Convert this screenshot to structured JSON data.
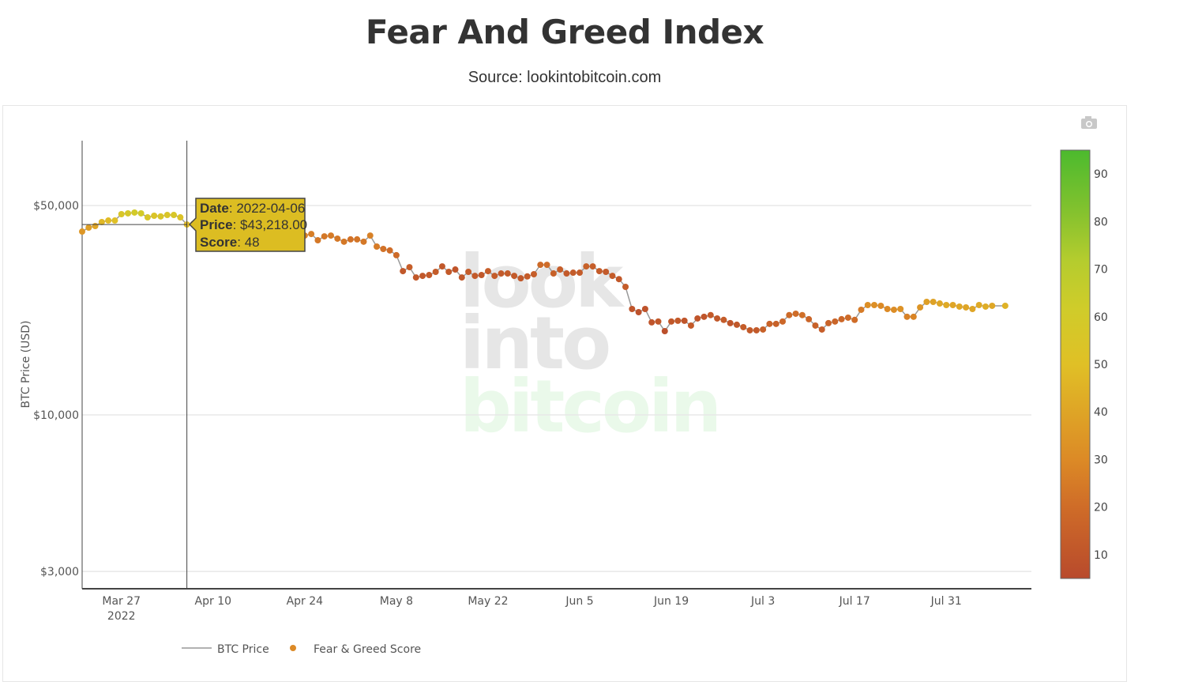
{
  "header": {
    "title": "Fear And Greed Index",
    "subtitle": "Source: lookintobitcoin.com"
  },
  "toolbar": {
    "camera_icon": "camera-icon"
  },
  "watermark": {
    "line1": "look",
    "line2": "into",
    "line3": "bitcoin"
  },
  "tooltip": {
    "date_label": "Date",
    "date_value": "2022-04-06",
    "price_label": "Price",
    "price_value": "$43,218.00",
    "score_label": "Score",
    "score_value": "48"
  },
  "chart_data": {
    "type": "scatter",
    "title": "Fear And Greed Index",
    "subtitle": "Source: lookintobitcoin.com",
    "ylabel": "BTC Price (USD)",
    "yscale": "log",
    "ylim": [
      2627,
      82340
    ],
    "xlim": [
      "2022-03-21",
      "2022-08-13"
    ],
    "grid": true,
    "legend_position": "bottom",
    "x_ticks": [
      {
        "date": "2022-03-27",
        "label": "Mar 27",
        "sub": "2022"
      },
      {
        "date": "2022-04-10",
        "label": "Apr 10"
      },
      {
        "date": "2022-04-24",
        "label": "Apr 24"
      },
      {
        "date": "2022-05-08",
        "label": "May 8"
      },
      {
        "date": "2022-05-22",
        "label": "May 22"
      },
      {
        "date": "2022-06-05",
        "label": "Jun 5"
      },
      {
        "date": "2022-06-19",
        "label": "Jun 19"
      },
      {
        "date": "2022-07-03",
        "label": "Jul 3"
      },
      {
        "date": "2022-07-17",
        "label": "Jul 17"
      },
      {
        "date": "2022-07-31",
        "label": "Jul 31"
      }
    ],
    "y_ticks": [
      {
        "value": 50000,
        "label": "$50,000"
      },
      {
        "value": 10000,
        "label": "$10,000"
      },
      {
        "value": 3000,
        "label": "$3,000"
      }
    ],
    "colorbar": {
      "range": [
        5,
        95
      ],
      "ticks": [
        10,
        20,
        30,
        40,
        50,
        60,
        70,
        80,
        90
      ],
      "stops": [
        [
          5,
          "#b84a2c"
        ],
        [
          20,
          "#cf6c28"
        ],
        [
          30,
          "#dc8a26"
        ],
        [
          42,
          "#dfaa26"
        ],
        [
          50,
          "#e0c026"
        ],
        [
          62,
          "#cfcc2a"
        ],
        [
          72,
          "#b4cc2e"
        ],
        [
          82,
          "#84c22e"
        ],
        [
          95,
          "#4cba2e"
        ]
      ]
    },
    "series": [
      {
        "name": "BTC Price",
        "color": "#999999",
        "kind": "line"
      },
      {
        "name": "Fear & Greed Score",
        "color": "#dc8a26",
        "kind": "markers"
      }
    ],
    "hover": {
      "date": "2022-04-06",
      "price": 43218,
      "score": 48
    },
    "points": [
      [
        "2022-03-21",
        40930,
        35
      ],
      [
        "2022-03-22",
        42200,
        38
      ],
      [
        "2022-03-23",
        42720,
        40
      ],
      [
        "2022-03-24",
        44040,
        47
      ],
      [
        "2022-03-25",
        44570,
        48
      ],
      [
        "2022-03-26",
        44570,
        50
      ],
      [
        "2022-03-27",
        46800,
        56
      ],
      [
        "2022-03-28",
        47090,
        58
      ],
      [
        "2022-03-29",
        47380,
        60
      ],
      [
        "2022-03-30",
        47090,
        60
      ],
      [
        "2022-03-31",
        45660,
        56
      ],
      [
        "2022-04-01",
        46230,
        54
      ],
      [
        "2022-04-02",
        46000,
        55
      ],
      [
        "2022-04-03",
        46500,
        55
      ],
      [
        "2022-04-04",
        46500,
        56
      ],
      [
        "2022-04-05",
        45660,
        53
      ],
      [
        "2022-04-06",
        43218,
        48
      ],
      [
        "2022-04-07",
        43450,
        41
      ],
      [
        "2022-04-08",
        42250,
        39
      ],
      [
        "2022-04-09",
        42750,
        40
      ],
      [
        "2022-04-10",
        42150,
        38
      ],
      [
        "2022-04-11",
        39500,
        33
      ],
      [
        "2022-04-12",
        40080,
        27
      ],
      [
        "2022-04-13",
        41150,
        27
      ],
      [
        "2022-04-14",
        39930,
        28
      ],
      [
        "2022-04-15",
        40550,
        27
      ],
      [
        "2022-04-16",
        40400,
        27
      ],
      [
        "2022-04-17",
        39700,
        26
      ],
      [
        "2022-04-18",
        40800,
        25
      ],
      [
        "2022-04-19",
        41500,
        28
      ],
      [
        "2022-04-20",
        41370,
        29
      ],
      [
        "2022-04-21",
        40480,
        28
      ],
      [
        "2022-04-22",
        39710,
        26
      ],
      [
        "2022-04-23",
        39470,
        26
      ],
      [
        "2022-04-24",
        39700,
        27
      ],
      [
        "2022-04-25",
        40180,
        26
      ],
      [
        "2022-04-26",
        38290,
        24
      ],
      [
        "2022-04-27",
        39460,
        24
      ],
      [
        "2022-04-28",
        39700,
        25
      ],
      [
        "2022-04-29",
        38770,
        24
      ],
      [
        "2022-04-30",
        37870,
        24
      ],
      [
        "2022-05-01",
        38550,
        22
      ],
      [
        "2022-05-02",
        38550,
        23
      ],
      [
        "2022-05-03",
        37870,
        24
      ],
      [
        "2022-05-04",
        39700,
        27
      ],
      [
        "2022-05-05",
        36480,
        25
      ],
      [
        "2022-05-06",
        35820,
        22
      ],
      [
        "2022-05-07",
        35400,
        20
      ],
      [
        "2022-05-08",
        34140,
        19
      ],
      [
        "2022-05-09",
        30200,
        11
      ],
      [
        "2022-05-10",
        31130,
        14
      ],
      [
        "2022-05-11",
        28770,
        11
      ],
      [
        "2022-05-12",
        29120,
        11
      ],
      [
        "2022-05-13",
        29300,
        12
      ],
      [
        "2022-05-14",
        30030,
        13
      ],
      [
        "2022-05-15",
        31320,
        11
      ],
      [
        "2022-05-16",
        30030,
        12
      ],
      [
        "2022-05-17",
        30580,
        10
      ],
      [
        "2022-05-18",
        28770,
        11
      ],
      [
        "2022-05-19",
        30030,
        13
      ],
      [
        "2022-05-20",
        29120,
        12
      ],
      [
        "2022-05-21",
        29300,
        11
      ],
      [
        "2022-05-22",
        30200,
        14
      ],
      [
        "2022-05-23",
        29120,
        13
      ],
      [
        "2022-05-24",
        29660,
        12
      ],
      [
        "2022-05-25",
        29660,
        13
      ],
      [
        "2022-05-26",
        29120,
        12
      ],
      [
        "2022-05-27",
        28580,
        11
      ],
      [
        "2022-05-28",
        29000,
        13
      ],
      [
        "2022-05-29",
        29490,
        14
      ],
      [
        "2022-05-30",
        31700,
        19
      ],
      [
        "2022-05-31",
        31700,
        20
      ],
      [
        "2022-06-01",
        29660,
        15
      ],
      [
        "2022-06-02",
        30580,
        14
      ],
      [
        "2022-06-03",
        29660,
        12
      ],
      [
        "2022-06-04",
        29840,
        13
      ],
      [
        "2022-06-05",
        29840,
        13
      ],
      [
        "2022-06-06",
        31320,
        15
      ],
      [
        "2022-06-07",
        31320,
        14
      ],
      [
        "2022-06-08",
        30200,
        13
      ],
      [
        "2022-06-09",
        30030,
        12
      ],
      [
        "2022-06-10",
        29120,
        13
      ],
      [
        "2022-06-11",
        28400,
        11
      ],
      [
        "2022-06-12",
        26760,
        13
      ],
      [
        "2022-06-13",
        22570,
        10
      ],
      [
        "2022-06-14",
        22030,
        8
      ],
      [
        "2022-06-15",
        22570,
        9
      ],
      [
        "2022-06-16",
        20370,
        10
      ],
      [
        "2022-06-17",
        20500,
        11
      ],
      [
        "2022-06-18",
        19040,
        7
      ],
      [
        "2022-06-19",
        20500,
        11
      ],
      [
        "2022-06-20",
        20620,
        12
      ],
      [
        "2022-06-21",
        20620,
        10
      ],
      [
        "2022-06-22",
        19870,
        12
      ],
      [
        "2022-06-23",
        20990,
        10
      ],
      [
        "2022-06-24",
        21260,
        10
      ],
      [
        "2022-06-25",
        21540,
        12
      ],
      [
        "2022-06-26",
        20990,
        11
      ],
      [
        "2022-06-27",
        20760,
        13
      ],
      [
        "2022-06-28",
        20250,
        10
      ],
      [
        "2022-06-29",
        20000,
        11
      ],
      [
        "2022-06-30",
        19630,
        13
      ],
      [
        "2022-07-01",
        19160,
        12
      ],
      [
        "2022-07-02",
        19160,
        12
      ],
      [
        "2022-07-03",
        19280,
        15
      ],
      [
        "2022-07-04",
        20130,
        16
      ],
      [
        "2022-07-05",
        20130,
        15
      ],
      [
        "2022-07-06",
        20500,
        18
      ],
      [
        "2022-07-07",
        21540,
        19
      ],
      [
        "2022-07-08",
        21770,
        20
      ],
      [
        "2022-07-09",
        21540,
        21
      ],
      [
        "2022-07-10",
        20870,
        17
      ],
      [
        "2022-07-11",
        19870,
        15
      ],
      [
        "2022-07-12",
        19280,
        14
      ],
      [
        "2022-07-13",
        20250,
        16
      ],
      [
        "2022-07-14",
        20500,
        17
      ],
      [
        "2022-07-15",
        20870,
        18
      ],
      [
        "2022-07-16",
        21120,
        19
      ],
      [
        "2022-07-17",
        20760,
        20
      ],
      [
        "2022-07-18",
        22440,
        25
      ],
      [
        "2022-07-19",
        23270,
        32
      ],
      [
        "2022-07-20",
        23270,
        32
      ],
      [
        "2022-07-21",
        23130,
        30
      ],
      [
        "2022-07-22",
        22570,
        30
      ],
      [
        "2022-07-23",
        22440,
        31
      ],
      [
        "2022-07-24",
        22570,
        33
      ],
      [
        "2022-07-25",
        21260,
        27
      ],
      [
        "2022-07-26",
        21260,
        28
      ],
      [
        "2022-07-27",
        22850,
        34
      ],
      [
        "2022-07-28",
        23840,
        38
      ],
      [
        "2022-07-29",
        23840,
        39
      ],
      [
        "2022-07-30",
        23550,
        41
      ],
      [
        "2022-07-31",
        23270,
        42
      ],
      [
        "2022-08-01",
        23270,
        40
      ],
      [
        "2022-08-02",
        22990,
        41
      ],
      [
        "2022-08-03",
        22850,
        40
      ],
      [
        "2022-08-04",
        22570,
        40
      ],
      [
        "2022-08-05",
        23270,
        42
      ],
      [
        "2022-08-06",
        22990,
        43
      ],
      [
        "2022-08-07",
        23130,
        41
      ],
      [
        "2022-08-08",
        23130,
        null
      ],
      [
        "2022-08-09",
        23130,
        45
      ]
    ]
  }
}
